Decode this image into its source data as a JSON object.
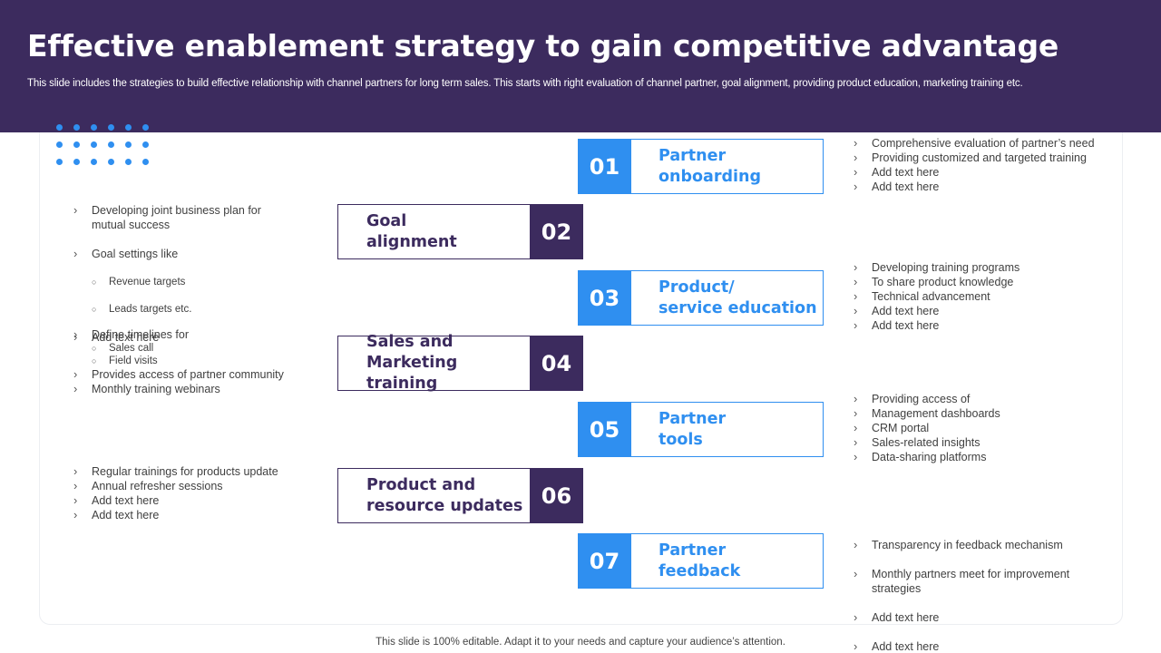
{
  "header": {
    "title": "Effective enablement strategy to gain competitive advantage",
    "subtitle": "This slide includes the strategies to build effective relationship with channel partners for long term sales. This starts with right evaluation of channel partner, goal alignment, providing product education, marketing training etc."
  },
  "colors": {
    "header_bg": "#3c2b5e",
    "accent_blue": "#2f8ff0",
    "accent_purple": "#3c2b5e"
  },
  "steps": [
    {
      "number": "01",
      "label": "Partner\nonboarding"
    },
    {
      "number": "02",
      "label": "Goal\nalignment"
    },
    {
      "number": "03",
      "label": "Product/\nservice education"
    },
    {
      "number": "04",
      "label": "Sales and\nMarketing training"
    },
    {
      "number": "05",
      "label": "Partner\ntools"
    },
    {
      "number": "06",
      "label": "Product and\nresource updates"
    },
    {
      "number": "07",
      "label": "Partner\nfeedback"
    }
  ],
  "notes": {
    "step01": [
      "Comprehensive  evaluation  of partner’s need",
      "Providing  customized and targeted training",
      "Add text here",
      "Add text here"
    ],
    "step02": {
      "items": [
        "Developing  joint business plan for\nmutual success",
        "Goal settings like",
        "Add text here"
      ],
      "subitems": [
        "Revenue targets",
        "Leads targets etc."
      ]
    },
    "step03": [
      "Developing  training programs",
      "To share product knowledge",
      "Technical advancement",
      "Add text here",
      "Add text here"
    ],
    "step04": {
      "items": [
        "Define timelines for",
        "Provides access of partner community",
        "Monthly training webinars"
      ],
      "subitems": [
        "Sales call",
        "Field visits"
      ]
    },
    "step05": [
      "Providing  access of",
      "Management  dashboards",
      "CRM portal",
      "Sales-related  insights",
      "Data-sharing  platforms"
    ],
    "step06": [
      "Regular trainings for products update",
      "Annual refresher  sessions",
      "Add text here",
      "Add text here"
    ],
    "step07": [
      "Transparency  in feedback mechanism",
      "Monthly partners meet for improvement\nstrategies",
      "Add text here",
      "Add text here"
    ]
  },
  "footer": "This slide is 100% editable. Adapt it to your needs and capture your audience’s attention."
}
